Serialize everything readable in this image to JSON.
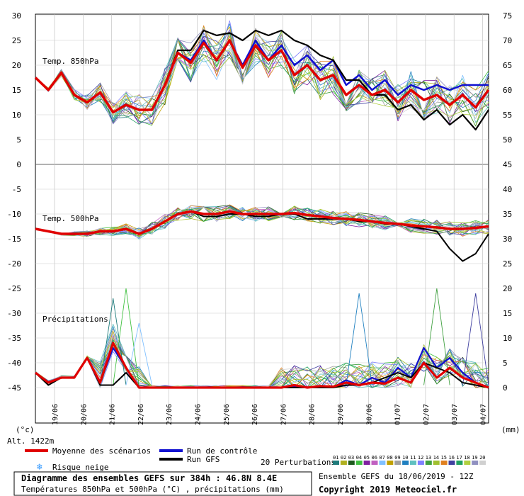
{
  "chart_data": {
    "type": "line",
    "title": "Diagramme des ensembles GEFS sur 384h : 46.8N 8.4E",
    "subtitle": "Températures 850hPa et 500hPa (°C) , précipitations (mm)",
    "copyright": "Copyright 2019 Meteociel.fr",
    "run_info": "Ensemble GEFS du 18/06/2019 - 12Z",
    "altitude": "Alt. 1422m",
    "left_unit": "(°c)",
    "right_unit": "(mm)",
    "panel_labels": [
      "Temp. 850hPa",
      "Temp. 500hPa",
      "Précipitations"
    ],
    "left_ticks_top": [
      30,
      25,
      20,
      15,
      10,
      5,
      0
    ],
    "left_ticks_bottom": [
      -5,
      -10,
      -15,
      -20,
      -25,
      -30,
      -35,
      -40,
      -45
    ],
    "right_ticks_top": [
      75,
      70,
      65,
      60,
      55,
      50,
      45
    ],
    "right_ticks_bottom": [
      40,
      35,
      30,
      25,
      20,
      15,
      10,
      5,
      0
    ],
    "x_dates": [
      "19/06",
      "20/06",
      "21/06",
      "22/06",
      "23/06",
      "24/06",
      "25/06",
      "26/06",
      "27/06",
      "28/06",
      "29/06",
      "30/06",
      "01/07",
      "02/07",
      "03/07",
      "04/07"
    ],
    "legend": {
      "mean": "Moyenne des scénarios",
      "control": "Run de contrôle",
      "gfs": "Run GFS",
      "snow": "Risque neige",
      "perturbations": "20 Perturbations",
      "perturbation_ids": [
        "01",
        "02",
        "03",
        "04",
        "05",
        "06",
        "07",
        "08",
        "09",
        "10",
        "11",
        "12",
        "13",
        "14",
        "15",
        "16",
        "17",
        "18",
        "19",
        "20"
      ]
    },
    "colors": {
      "mean": "#e00000",
      "control": "#1010d0",
      "gfs": "#000000",
      "snow": "#3399ff",
      "perturbations": [
        "#1e7a7a",
        "#b0b020",
        "#1e5a1e",
        "#40c040",
        "#8020a0",
        "#c060c0",
        "#80c0ff",
        "#c0a000",
        "#a0a0a0",
        "#2080c0",
        "#60c0c0",
        "#8080ff",
        "#40a040",
        "#a0c030",
        "#e08020",
        "#4040a0",
        "#20a060",
        "#b0d040",
        "#9090c0",
        "#d0d0d0"
      ]
    },
    "t850_mean": [
      17.5,
      15,
      18.5,
      14,
      12.5,
      14.5,
      10.5,
      12,
      11,
      11,
      16,
      22.5,
      20.5,
      24.5,
      21,
      25,
      19.5,
      24,
      21,
      23,
      18,
      20,
      17,
      18,
      14,
      16,
      14,
      15,
      12.5,
      15,
      13,
      14,
      12,
      14,
      11.5,
      15
    ],
    "t850_control": [
      17.5,
      15,
      18.5,
      14,
      12.5,
      14.5,
      10.5,
      12,
      11,
      11,
      16,
      22.5,
      21,
      25,
      21,
      25,
      20,
      25,
      21,
      24,
      20,
      22,
      19,
      21,
      16,
      18,
      15,
      17,
      14,
      16,
      15,
      16,
      15,
      16,
      16,
      16
    ],
    "t850_gfs": [
      17.5,
      15,
      18.5,
      14,
      12.5,
      14.5,
      10.5,
      12,
      11,
      11,
      16,
      23,
      23,
      27,
      26,
      26.5,
      25,
      27,
      26,
      27,
      25,
      24,
      22,
      21,
      17,
      17,
      14,
      14,
      11,
      12,
      9,
      11,
      8,
      10,
      7,
      11
    ],
    "t500_mean": [
      -13,
      -13.5,
      -14,
      -14,
      -14,
      -13.5,
      -13.5,
      -13,
      -14,
      -13,
      -11.5,
      -10,
      -9.5,
      -10,
      -10,
      -9.5,
      -10,
      -10,
      -10,
      -10,
      -9.8,
      -10.2,
      -10.5,
      -10.8,
      -11,
      -11.2,
      -11.5,
      -11.8,
      -12,
      -12.3,
      -12.5,
      -12.7,
      -13,
      -13,
      -12.8,
      -12.5
    ],
    "t500_gfs": [
      -13,
      -13.5,
      -14,
      -14,
      -14,
      -13.5,
      -13.5,
      -13,
      -14,
      -13,
      -11.5,
      -10,
      -9.5,
      -10.5,
      -10.5,
      -10,
      -10,
      -10.5,
      -10.5,
      -10,
      -10,
      -11,
      -11,
      -11,
      -11,
      -11.5,
      -11.5,
      -12,
      -12,
      -12.5,
      -13,
      -13.5,
      -17,
      -19.5,
      -18,
      -14
    ],
    "precip_mean": [
      3,
      1,
      2,
      2,
      6,
      1,
      9,
      4,
      0,
      0,
      0,
      0,
      0,
      0,
      0,
      0,
      0,
      0,
      0,
      0,
      0.5,
      0,
      0.3,
      0.2,
      1,
      0.5,
      1,
      0.8,
      2,
      1,
      5,
      2,
      4,
      2,
      1,
      0
    ],
    "precip_control": [
      3,
      1,
      2,
      2,
      6,
      1,
      8,
      4,
      0,
      0,
      0,
      0,
      0,
      0,
      0,
      0,
      0,
      0,
      0,
      0,
      0.3,
      0,
      0.2,
      0.1,
      1.5,
      0.5,
      2,
      1,
      4,
      2,
      8,
      4,
      6,
      3,
      1,
      0
    ],
    "precip_gfs": [
      3,
      0.5,
      2,
      2,
      6,
      0.5,
      0.5,
      3,
      0,
      0,
      0,
      0,
      0,
      0,
      0,
      0,
      0,
      0,
      0,
      0,
      0,
      0,
      0,
      0,
      0.5,
      0.5,
      1,
      2,
      3,
      2,
      5,
      4,
      3,
      1,
      0.5,
      0
    ],
    "precip_spikes": [
      [
        6,
        18
      ],
      [
        7,
        20
      ],
      [
        8,
        13
      ],
      [
        25,
        19
      ],
      [
        31,
        20
      ],
      [
        34,
        19
      ]
    ]
  }
}
